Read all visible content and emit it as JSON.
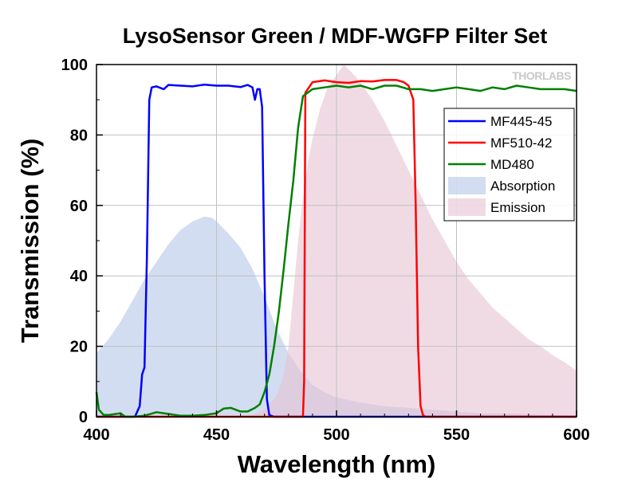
{
  "chart_data": {
    "type": "line",
    "title": "LysoSensor Green / MDF-WGFP Filter Set",
    "xlabel": "Wavelength (nm)",
    "ylabel": "Transmission (%)",
    "xlim": [
      400,
      600
    ],
    "ylim": [
      0,
      100
    ],
    "x_ticks": [
      "400",
      "450",
      "500",
      "550",
      "600"
    ],
    "y_ticks": [
      "0",
      "20",
      "40",
      "60",
      "80",
      "100"
    ],
    "grid": true,
    "legend_position": "top-right",
    "watermark": "THORLABS",
    "series": [
      {
        "name": "MF445-45",
        "kind": "line",
        "color": "#0000ff",
        "points": [
          [
            400,
            0
          ],
          [
            416,
            0
          ],
          [
            418,
            3
          ],
          [
            419,
            12
          ],
          [
            420,
            14
          ],
          [
            421,
            45
          ],
          [
            422,
            90
          ],
          [
            423,
            93.5
          ],
          [
            425,
            93.8
          ],
          [
            428,
            93
          ],
          [
            430,
            94.2
          ],
          [
            435,
            94
          ],
          [
            440,
            93.8
          ],
          [
            445,
            94.3
          ],
          [
            450,
            94
          ],
          [
            455,
            94
          ],
          [
            460,
            93.6
          ],
          [
            463,
            94.2
          ],
          [
            465,
            93.5
          ],
          [
            466,
            90
          ],
          [
            467,
            93
          ],
          [
            468,
            93
          ],
          [
            469,
            88
          ],
          [
            470,
            40
          ],
          [
            471,
            5
          ],
          [
            472,
            0.5
          ],
          [
            474,
            0
          ],
          [
            600,
            0
          ]
        ]
      },
      {
        "name": "MF510-42",
        "kind": "line",
        "color": "#ff0000",
        "points": [
          [
            400,
            0
          ],
          [
            486,
            0
          ],
          [
            486.5,
            10
          ],
          [
            487,
            92
          ],
          [
            490,
            95
          ],
          [
            495,
            95.5
          ],
          [
            500,
            95
          ],
          [
            505,
            94.8
          ],
          [
            510,
            95.3
          ],
          [
            515,
            95.2
          ],
          [
            520,
            95.6
          ],
          [
            525,
            95.6
          ],
          [
            528,
            95
          ],
          [
            530,
            94
          ],
          [
            532,
            90
          ],
          [
            533,
            60
          ],
          [
            534,
            20
          ],
          [
            535,
            3
          ],
          [
            536,
            0.5
          ],
          [
            537,
            0
          ],
          [
            600,
            0
          ]
        ]
      },
      {
        "name": "MD480",
        "kind": "line",
        "color": "#008000",
        "points": [
          [
            400,
            7
          ],
          [
            401,
            2
          ],
          [
            403,
            0.5
          ],
          [
            405,
            0.5
          ],
          [
            410,
            1
          ],
          [
            412,
            0
          ],
          [
            415,
            0
          ],
          [
            420,
            0.3
          ],
          [
            425,
            1.3
          ],
          [
            430,
            0.8
          ],
          [
            435,
            0.3
          ],
          [
            440,
            0.3
          ],
          [
            445,
            0.5
          ],
          [
            450,
            1
          ],
          [
            453,
            2.3
          ],
          [
            456,
            2.5
          ],
          [
            460,
            1.5
          ],
          [
            463,
            1.5
          ],
          [
            466,
            2.5
          ],
          [
            468,
            3.5
          ],
          [
            470,
            7
          ],
          [
            472,
            12
          ],
          [
            474,
            20
          ],
          [
            476,
            30
          ],
          [
            478,
            42
          ],
          [
            480,
            55
          ],
          [
            482,
            67
          ],
          [
            484,
            82
          ],
          [
            486,
            91
          ],
          [
            490,
            93
          ],
          [
            495,
            93.5
          ],
          [
            500,
            94
          ],
          [
            505,
            93.5
          ],
          [
            510,
            94
          ],
          [
            515,
            93
          ],
          [
            520,
            94
          ],
          [
            525,
            94
          ],
          [
            530,
            93
          ],
          [
            535,
            93
          ],
          [
            540,
            92.5
          ],
          [
            545,
            93
          ],
          [
            550,
            93.5
          ],
          [
            555,
            93
          ],
          [
            560,
            92.5
          ],
          [
            565,
            93.5
          ],
          [
            570,
            93
          ],
          [
            575,
            94
          ],
          [
            580,
            93.5
          ],
          [
            585,
            93
          ],
          [
            590,
            93
          ],
          [
            595,
            93
          ],
          [
            600,
            92.5
          ]
        ]
      },
      {
        "name": "Absorption",
        "kind": "area",
        "color": "#b4c6e7",
        "points": [
          [
            400,
            18
          ],
          [
            405,
            22
          ],
          [
            410,
            27
          ],
          [
            415,
            33
          ],
          [
            420,
            39
          ],
          [
            425,
            44
          ],
          [
            430,
            49
          ],
          [
            435,
            53
          ],
          [
            440,
            55.5
          ],
          [
            445,
            56.8
          ],
          [
            448,
            56.5
          ],
          [
            450,
            55.5
          ],
          [
            455,
            52
          ],
          [
            460,
            48
          ],
          [
            465,
            42
          ],
          [
            470,
            34
          ],
          [
            475,
            25
          ],
          [
            480,
            18
          ],
          [
            485,
            13
          ],
          [
            490,
            9
          ],
          [
            495,
            7
          ],
          [
            500,
            5.5
          ],
          [
            510,
            4
          ],
          [
            520,
            3
          ],
          [
            530,
            2.5
          ],
          [
            540,
            2
          ],
          [
            550,
            1.5
          ],
          [
            560,
            1
          ],
          [
            570,
            1
          ],
          [
            580,
            0.7
          ],
          [
            590,
            0.5
          ],
          [
            600,
            0.3
          ]
        ]
      },
      {
        "name": "Emission",
        "kind": "area",
        "color": "#e6c3d3",
        "points": [
          [
            400,
            0
          ],
          [
            460,
            0
          ],
          [
            465,
            0.5
          ],
          [
            470,
            2
          ],
          [
            475,
            6
          ],
          [
            478,
            12
          ],
          [
            480,
            20
          ],
          [
            482,
            35
          ],
          [
            484,
            50
          ],
          [
            486,
            62
          ],
          [
            488,
            72
          ],
          [
            490,
            79
          ],
          [
            493,
            87
          ],
          [
            496,
            93
          ],
          [
            500,
            97
          ],
          [
            503,
            100
          ],
          [
            506,
            98
          ],
          [
            510,
            95
          ],
          [
            515,
            90
          ],
          [
            520,
            84
          ],
          [
            525,
            77
          ],
          [
            530,
            70
          ],
          [
            535,
            63
          ],
          [
            540,
            56
          ],
          [
            545,
            50
          ],
          [
            550,
            44
          ],
          [
            555,
            39
          ],
          [
            560,
            35
          ],
          [
            565,
            31
          ],
          [
            570,
            28
          ],
          [
            575,
            25
          ],
          [
            580,
            22
          ],
          [
            585,
            20
          ],
          [
            590,
            17.5
          ],
          [
            595,
            15.5
          ],
          [
            600,
            13
          ]
        ]
      }
    ]
  }
}
